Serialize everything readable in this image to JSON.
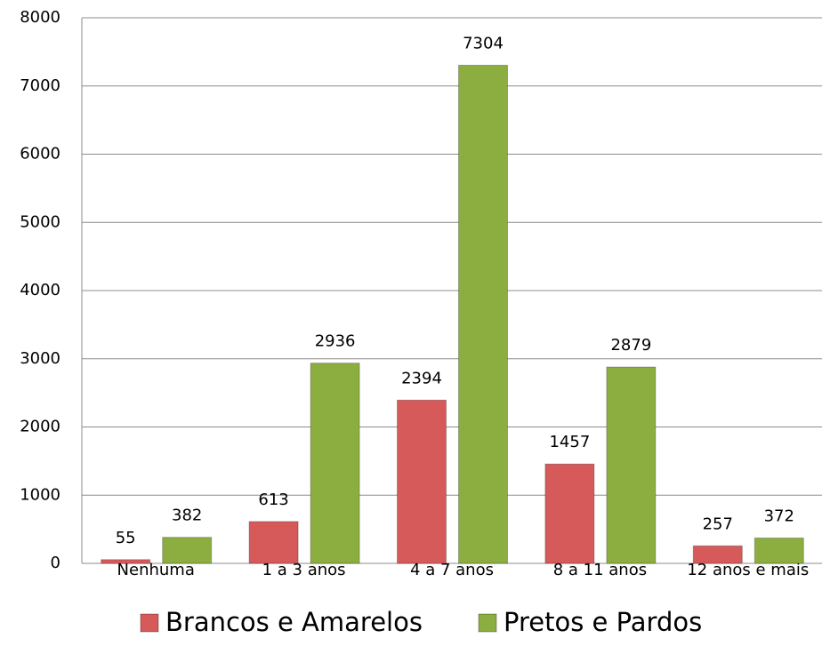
{
  "chart_data": {
    "type": "bar",
    "categories": [
      "Nenhuma",
      "1 a 3 anos",
      "4 a 7 anos",
      "8 a 11 anos",
      "12 anos e mais"
    ],
    "series": [
      {
        "name": "Brancos e Amarelos",
        "color": "#d65a5a",
        "values": [
          55,
          613,
          2394,
          1457,
          257
        ]
      },
      {
        "name": "Pretos e Pardos",
        "color": "#8cae40",
        "values": [
          382,
          2936,
          7304,
          2879,
          372
        ]
      }
    ],
    "ylim": [
      0,
      8000
    ],
    "yticks": [
      0,
      1000,
      2000,
      3000,
      4000,
      5000,
      6000,
      7000,
      8000
    ],
    "grid": true,
    "legend": "bottom"
  }
}
